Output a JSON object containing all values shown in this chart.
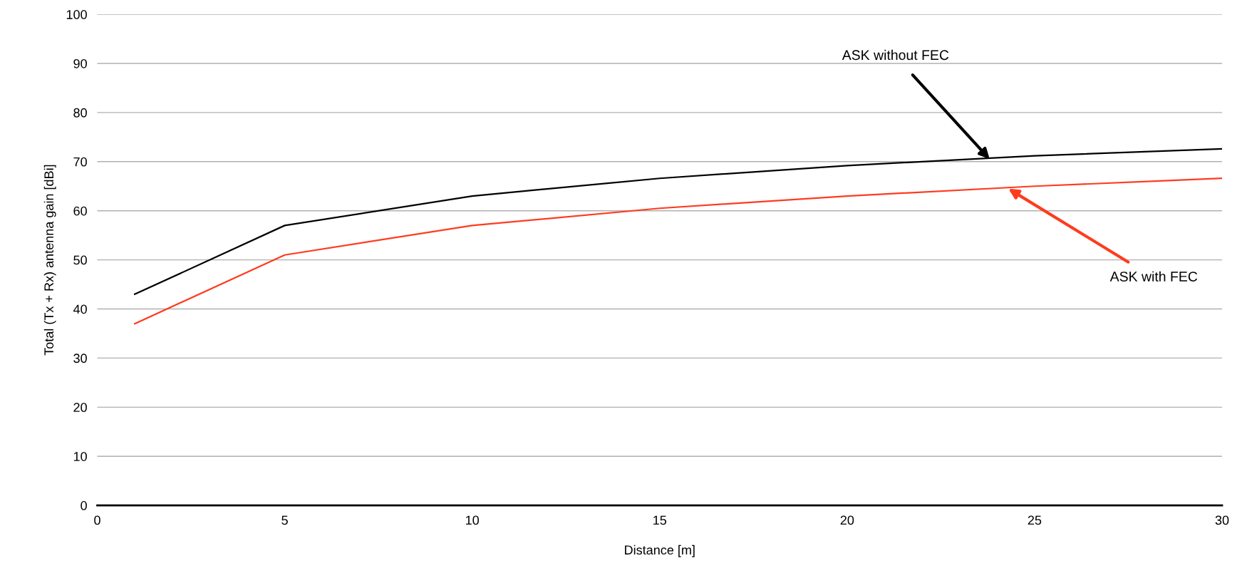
{
  "chart_data": {
    "type": "line",
    "xlabel": "Distance [m]",
    "ylabel": "Total (Tx + Rx) antenna gain [dBi]",
    "x": [
      1,
      5,
      10,
      15,
      20,
      25,
      30
    ],
    "series": [
      {
        "color": "#000000",
        "values": [
          43,
          57,
          63,
          66.6,
          69.2,
          71.2,
          72.6
        ]
      },
      {
        "color": "#ff3b1f",
        "values": [
          37,
          51,
          57,
          60.5,
          63,
          65,
          66.6
        ]
      }
    ],
    "annotations": [
      {
        "text": "ASK without FEC",
        "x": 23.8,
        "y": 70.5
      },
      {
        "text": "ASK with FEC",
        "x": 24.3,
        "y": 64.5
      }
    ],
    "xlim": [
      0,
      30
    ],
    "xticks": [
      0,
      5,
      10,
      15,
      20,
      25,
      30
    ],
    "ylim": [
      0,
      100
    ],
    "yticks": [
      0,
      10,
      20,
      30,
      40,
      50,
      60,
      70,
      80,
      90,
      100
    ],
    "grid": "y",
    "legend": false,
    "marker": "none",
    "line_style": "solid"
  }
}
